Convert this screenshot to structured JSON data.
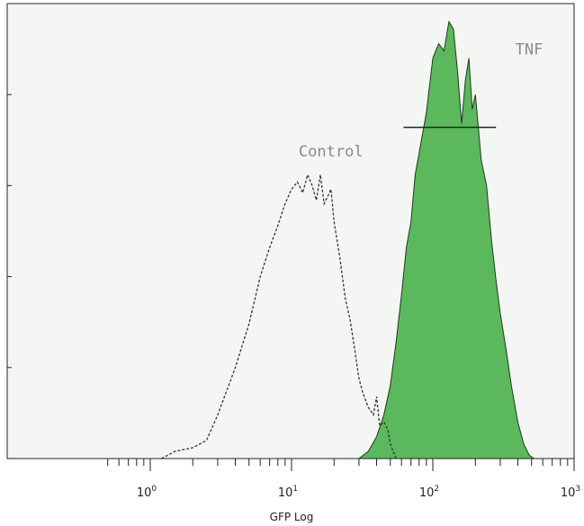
{
  "chart_data": {
    "type": "area",
    "xscale": "log",
    "xlim": [
      0.5,
      1000
    ],
    "ylim": [
      0,
      125
    ],
    "xlabel": "GFP Log",
    "ylabel": "",
    "grid": false,
    "x_ticks": [
      {
        "base": "10",
        "exp": "0",
        "value": 1
      },
      {
        "base": "10",
        "exp": "1",
        "value": 10
      },
      {
        "base": "10",
        "exp": "2",
        "value": 100
      },
      {
        "base": "10",
        "exp": "3",
        "value": 1000
      }
    ],
    "series": [
      {
        "name": "Control",
        "style": "dashed",
        "color": "#333333",
        "x": [
          1.2,
          1.5,
          2,
          2.5,
          3,
          4,
          5,
          6,
          7,
          8,
          9,
          10,
          11,
          12,
          13,
          14,
          15,
          16,
          17,
          18,
          19,
          20,
          22,
          24,
          26,
          28,
          30,
          32,
          35,
          38,
          40,
          42,
          45,
          48,
          50,
          55
        ],
        "values": [
          0,
          2,
          3,
          5,
          12,
          25,
          37,
          50,
          58,
          64,
          70,
          74,
          76,
          73,
          78,
          75,
          71,
          78,
          70,
          72,
          74,
          65,
          55,
          44,
          38,
          30,
          22,
          18,
          14,
          12,
          17,
          9,
          10,
          8,
          4,
          0
        ]
      },
      {
        "name": "TNF",
        "style": "filled",
        "color": "#5cb85c",
        "x": [
          30,
          35,
          40,
          45,
          50,
          55,
          60,
          65,
          70,
          75,
          80,
          90,
          100,
          110,
          120,
          130,
          140,
          150,
          160,
          170,
          180,
          190,
          200,
          220,
          240,
          260,
          280,
          300,
          330,
          360,
          400,
          440,
          480,
          520
        ],
        "values": [
          0,
          2,
          6,
          12,
          20,
          32,
          45,
          58,
          65,
          78,
          84,
          95,
          110,
          114,
          112,
          120,
          118,
          106,
          92,
          104,
          110,
          96,
          100,
          82,
          75,
          60,
          49,
          40,
          30,
          20,
          10,
          4,
          1,
          0
        ]
      }
    ],
    "gate": {
      "x_start": 62,
      "x_end": 280,
      "y": 91
    },
    "annotations": [
      {
        "text": "Control",
        "x": 19,
        "y": 83
      },
      {
        "text": "TNF",
        "x": 480,
        "y": 111
      }
    ]
  }
}
